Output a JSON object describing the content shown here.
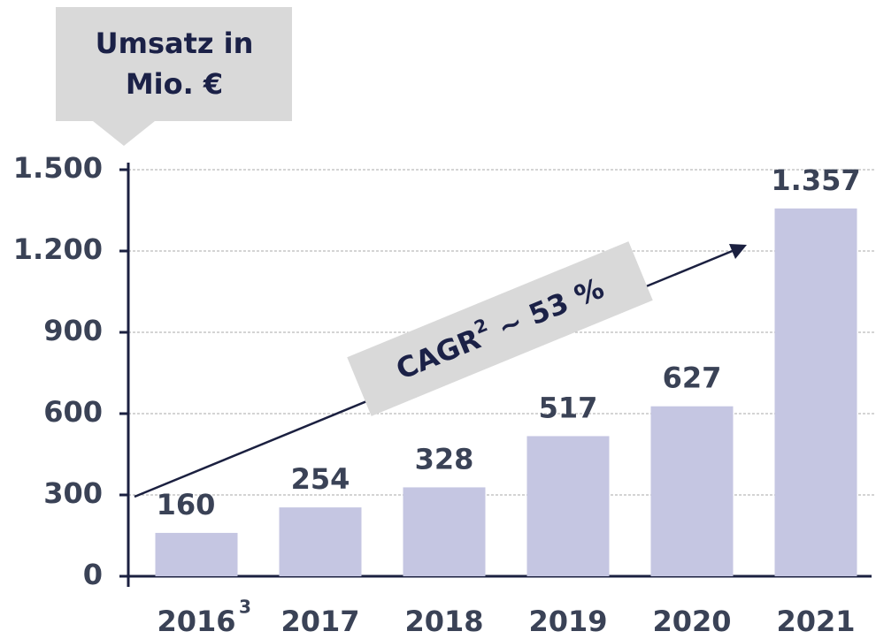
{
  "chart_data": {
    "type": "bar",
    "ylabel_lines": [
      "Umsatz in",
      "Mio. €"
    ],
    "categories": [
      "2016",
      "2017",
      "2018",
      "2019",
      "2020",
      "2021"
    ],
    "category_superscripts": [
      "3",
      null,
      null,
      null,
      null,
      null
    ],
    "values": [
      160,
      254,
      328,
      517,
      627,
      1357
    ],
    "value_labels": [
      "160",
      "254",
      "328",
      "517",
      "627",
      "1.357"
    ],
    "color": "#c5c6e2",
    "ylim": [
      0,
      1500
    ],
    "yticks": [
      0,
      300,
      600,
      900,
      {
        "value": 1200,
        "label": "1.200"
      },
      {
        "value": 1500,
        "label": "1.500"
      }
    ],
    "grid": true,
    "annotation": {
      "text": "CAGR",
      "superscript": "2",
      "suffix": " ~ 53 %"
    }
  }
}
